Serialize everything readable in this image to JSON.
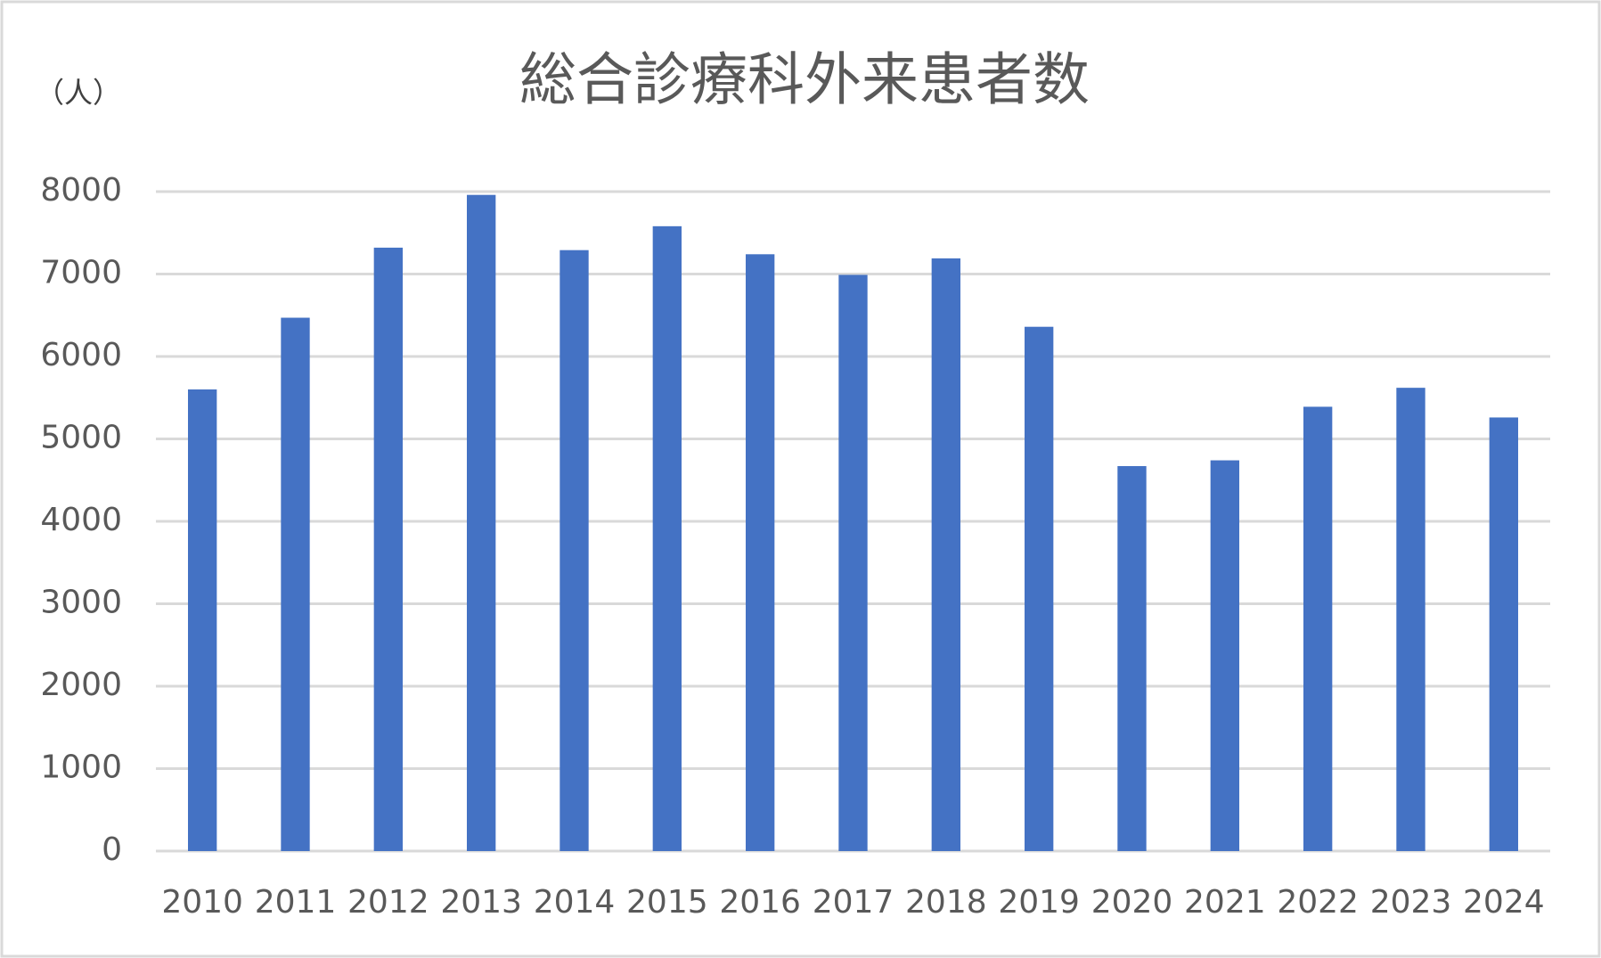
{
  "chart_data": {
    "type": "bar",
    "title": "総合診療科外来患者数",
    "y_label": "（人）",
    "categories": [
      "2010",
      "2011",
      "2012",
      "2013",
      "2014",
      "2015",
      "2016",
      "2017",
      "2018",
      "2019",
      "2020",
      "2021",
      "2022",
      "2023",
      "2024"
    ],
    "values": [
      5600,
      6470,
      7320,
      7960,
      7290,
      7580,
      7240,
      6990,
      7190,
      6360,
      4670,
      4740,
      5390,
      5620,
      5260
    ],
    "color": "#4472c4",
    "ylim": [
      0,
      8000
    ],
    "yticks": [
      0,
      1000,
      2000,
      3000,
      4000,
      5000,
      6000,
      7000,
      8000
    ],
    "grid": true
  }
}
